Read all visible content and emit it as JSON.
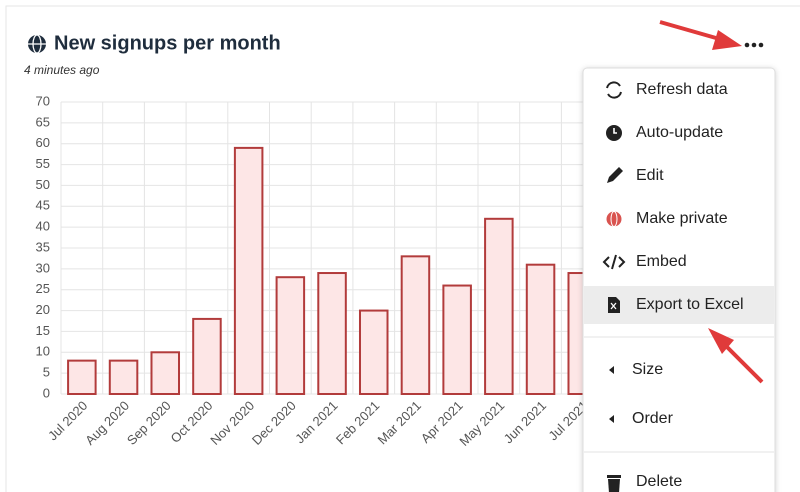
{
  "widget": {
    "title": "New signups per month",
    "subtitle": "4 minutes ago"
  },
  "chart_data": {
    "type": "bar",
    "categories": [
      "Jul 2020",
      "Aug 2020",
      "Sep 2020",
      "Oct 2020",
      "Nov 2020",
      "Dec 2020",
      "Jan 2021",
      "Feb 2021",
      "Mar 2021",
      "Apr 2021",
      "May 2021",
      "Jun 2021",
      "Jul 2021"
    ],
    "values": [
      8,
      8,
      10,
      18,
      59,
      28,
      29,
      20,
      33,
      26,
      42,
      31,
      29
    ],
    "color": "#fde6e6",
    "stroke": "#b23b3b",
    "ylim": [
      0,
      70
    ],
    "yticks": [
      0,
      5,
      10,
      15,
      20,
      25,
      30,
      35,
      40,
      45,
      50,
      55,
      60,
      65,
      70
    ],
    "grid": true
  },
  "menu": {
    "items": [
      "Refresh data",
      "Auto-update",
      "Edit",
      "Make private",
      "Embed",
      "Export to Excel",
      "Size",
      "Order",
      "Delete"
    ]
  }
}
